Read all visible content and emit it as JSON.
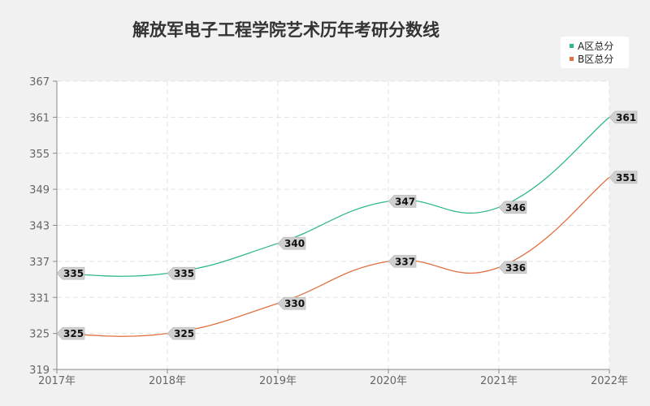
{
  "chart_data": {
    "type": "line",
    "title": "解放军电子工程学院艺术历年考研分数线",
    "xlabel": "",
    "ylabel": "",
    "categories": [
      "2017年",
      "2018年",
      "2019年",
      "2020年",
      "2021年",
      "2022年"
    ],
    "y_ticks": [
      "319",
      "325",
      "331",
      "337",
      "343",
      "349",
      "355",
      "361",
      "367"
    ],
    "ylim": [
      319,
      367
    ],
    "grid": true,
    "legend_position": "top-right",
    "series": [
      {
        "name": "A区总分",
        "color": "#2eb88a",
        "values": [
          335,
          335,
          340,
          347,
          346,
          361
        ]
      },
      {
        "name": "B区总分",
        "color": "#e0703f",
        "values": [
          325,
          325,
          330,
          337,
          336,
          351
        ]
      }
    ]
  }
}
